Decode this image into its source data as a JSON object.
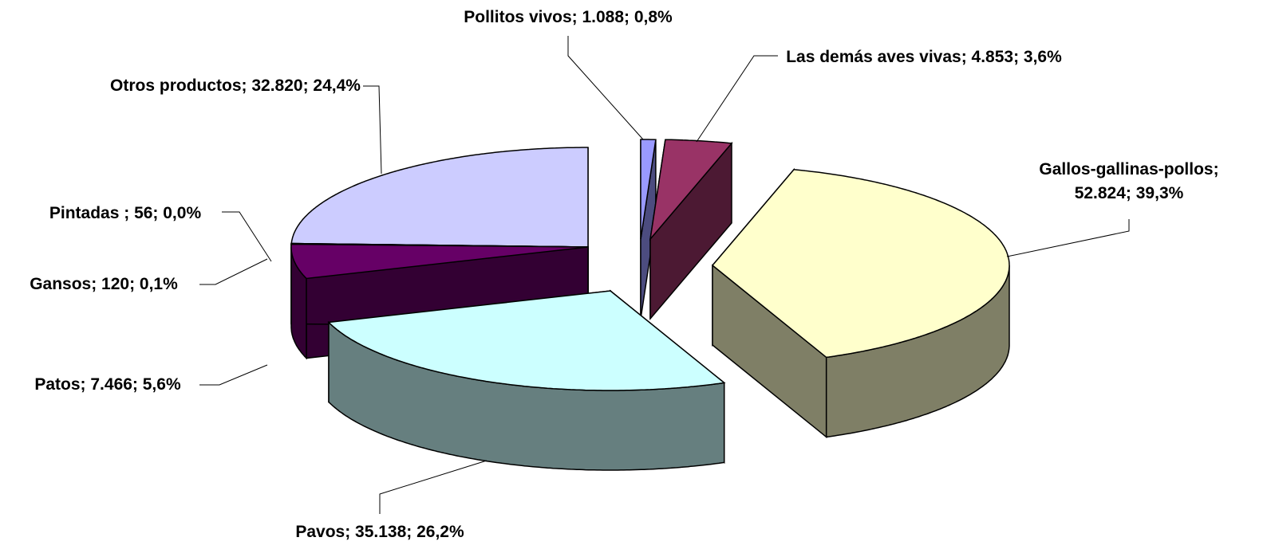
{
  "chart_data": {
    "type": "pie",
    "values": [
      1088,
      4853,
      52824,
      35138,
      7466,
      120,
      56,
      32820
    ],
    "value_labels": [
      "Pollitos vivos; 1.088; 0,8%",
      "Las demás aves vivas; 4.853; 3,6%",
      "Gallos-gallinas-pollos; 52.824; 39,3%",
      "Pavos; 35.138; 26,2%",
      "Patos; 7.466; 5,6%",
      "Gansos; 120; 0,1%",
      "Pintadas ; 56; 0,0%",
      "Otros productos; 32.820; 24,4%"
    ],
    "colors": [
      "#9999ff",
      "#993366",
      "#ffffcc",
      "#ccffff",
      "#660066",
      "#ff8080",
      "#0066cc",
      "#ccccff"
    ],
    "three_d": true
  }
}
